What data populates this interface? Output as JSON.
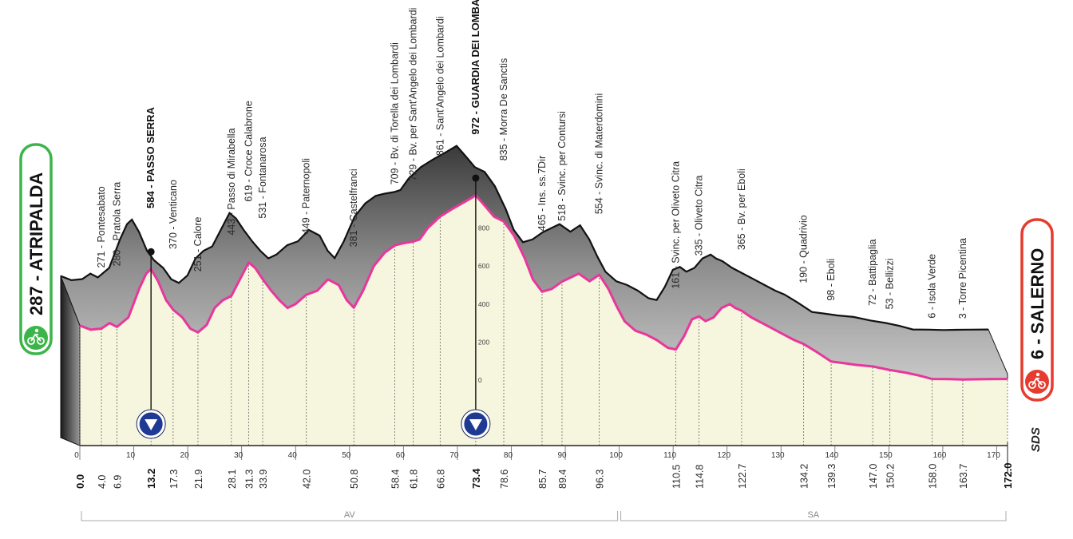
{
  "chart_data": {
    "type": "area",
    "title": "",
    "xlabel": "",
    "ylabel": "",
    "xlim": [
      0,
      172
    ],
    "ylim": [
      0,
      1000
    ],
    "x_ticks": [
      0,
      10,
      20,
      30,
      40,
      50,
      60,
      70,
      80,
      90,
      100,
      110,
      120,
      130,
      140,
      150,
      160,
      170
    ],
    "y_ticks": [
      0,
      200,
      400,
      600,
      800
    ],
    "start": {
      "label": "287 - ATRIPALDA",
      "km": 0.0,
      "alt": 287
    },
    "finish": {
      "label": "6 - SALERNO",
      "km": 172.0,
      "alt": 6
    },
    "waypoints": [
      {
        "km": 0.0,
        "km_label": "0.0",
        "alt": 287,
        "label": "287 - ATRIPALDA",
        "bold": true
      },
      {
        "km": 4.0,
        "km_label": "4.0",
        "alt": 271,
        "label": "271 - Pontesabato",
        "bold": false
      },
      {
        "km": 6.9,
        "km_label": "6.9",
        "alt": 280,
        "label": "280 - Pratola Serra",
        "bold": false
      },
      {
        "km": 13.2,
        "km_label": "13.2",
        "alt": 584,
        "label": "584 - PASSO SERRA",
        "bold": true
      },
      {
        "km": 17.3,
        "km_label": "17.3",
        "alt": 370,
        "label": "370 - Venticano",
        "bold": false
      },
      {
        "km": 21.9,
        "km_label": "21.9",
        "alt": 251,
        "label": "251 - Calore",
        "bold": false
      },
      {
        "km": 28.1,
        "km_label": "28.1",
        "alt": 443,
        "label": "443 - Passo di Mirabella",
        "bold": false
      },
      {
        "km": 31.3,
        "km_label": "31.3",
        "alt": 619,
        "label": "619 - Croce Calabrone",
        "bold": false
      },
      {
        "km": 33.9,
        "km_label": "33.9",
        "alt": 531,
        "label": "531 - Fontanarosa",
        "bold": false
      },
      {
        "km": 42.0,
        "km_label": "42.0",
        "alt": 449,
        "label": "449 - Paternopoli",
        "bold": false
      },
      {
        "km": 50.8,
        "km_label": "50.8",
        "alt": 381,
        "label": "381 - Castelfranci",
        "bold": false
      },
      {
        "km": 58.4,
        "km_label": "58.4",
        "alt": 709,
        "label": "709 - Bv. di Torella dei Lombardi",
        "bold": false
      },
      {
        "km": 61.8,
        "km_label": "61.8",
        "alt": 729,
        "label": "729 - Bv. per Sant'Angelo dei Lombardi",
        "bold": false
      },
      {
        "km": 66.8,
        "km_label": "66.8",
        "alt": 861,
        "label": "861 - Sant'Angelo dei Lombardi",
        "bold": false
      },
      {
        "km": 73.4,
        "km_label": "73.4",
        "alt": 972,
        "label": "972 - GUARDIA DEI LOMBARDI",
        "bold": true
      },
      {
        "km": 78.6,
        "km_label": "78.6",
        "alt": 835,
        "label": "835 - Morra De Sanctis",
        "bold": false
      },
      {
        "km": 85.7,
        "km_label": "85.7",
        "alt": 465,
        "label": "465 - Ins. ss.7Dir",
        "bold": false
      },
      {
        "km": 89.4,
        "km_label": "89.4",
        "alt": 518,
        "label": "518 - Svinc. per Contursi",
        "bold": false
      },
      {
        "km": 96.3,
        "km_label": "96.3",
        "alt": 554,
        "label": "554 - Svinc. di Materdomini",
        "bold": false
      },
      {
        "km": 110.5,
        "km_label": "110.5",
        "alt": 161,
        "label": "161 - Svinc. per Oliveto Citra",
        "bold": false
      },
      {
        "km": 114.8,
        "km_label": "114.8",
        "alt": 335,
        "label": "335 - Oliveto Citra",
        "bold": false
      },
      {
        "km": 122.7,
        "km_label": "122.7",
        "alt": 365,
        "label": "365 - Bv. per Eboli",
        "bold": false
      },
      {
        "km": 134.2,
        "km_label": "134.2",
        "alt": 190,
        "label": "190 - Quadrivio",
        "bold": false
      },
      {
        "km": 139.3,
        "km_label": "139.3",
        "alt": 98,
        "label": "98 - Eboli",
        "bold": false
      },
      {
        "km": 147.0,
        "km_label": "147.0",
        "alt": 72,
        "label": "72 - Battipaglia",
        "bold": false
      },
      {
        "km": 150.2,
        "km_label": "150.2",
        "alt": 53,
        "label": "53 - Bellizzi",
        "bold": false
      },
      {
        "km": 158.0,
        "km_label": "158.0",
        "alt": 6,
        "label": "6 - Isola Verde",
        "bold": false
      },
      {
        "km": 163.7,
        "km_label": "163.7",
        "alt": 3,
        "label": "3 - Torre Picentina",
        "bold": false
      },
      {
        "km": 172.0,
        "km_label": "172.0",
        "alt": 6,
        "label": "6 - SALERNO",
        "bold": true
      }
    ],
    "profile": [
      [
        0,
        287
      ],
      [
        2,
        265
      ],
      [
        4,
        271
      ],
      [
        5.5,
        300
      ],
      [
        6.9,
        280
      ],
      [
        9,
        330
      ],
      [
        11,
        480
      ],
      [
        12.3,
        560
      ],
      [
        13.2,
        584
      ],
      [
        14.5,
        520
      ],
      [
        16,
        420
      ],
      [
        17.3,
        370
      ],
      [
        19,
        330
      ],
      [
        20.5,
        270
      ],
      [
        21.9,
        251
      ],
      [
        23.5,
        290
      ],
      [
        25,
        380
      ],
      [
        26.5,
        420
      ],
      [
        28.1,
        443
      ],
      [
        29.5,
        520
      ],
      [
        31.3,
        619
      ],
      [
        32.5,
        590
      ],
      [
        33.9,
        531
      ],
      [
        35.5,
        470
      ],
      [
        37,
        420
      ],
      [
        38.5,
        380
      ],
      [
        40,
        400
      ],
      [
        42,
        449
      ],
      [
        44,
        470
      ],
      [
        46,
        530
      ],
      [
        48,
        500
      ],
      [
        49.5,
        420
      ],
      [
        50.8,
        381
      ],
      [
        52.5,
        470
      ],
      [
        54.5,
        600
      ],
      [
        56.5,
        670
      ],
      [
        58.4,
        709
      ],
      [
        60,
        720
      ],
      [
        61.8,
        729
      ],
      [
        63,
        740
      ],
      [
        64.5,
        800
      ],
      [
        66.8,
        861
      ],
      [
        69,
        900
      ],
      [
        71.5,
        940
      ],
      [
        73.4,
        972
      ],
      [
        75,
        920
      ],
      [
        76.8,
        860
      ],
      [
        78.6,
        835
      ],
      [
        80.5,
        760
      ],
      [
        82.5,
        640
      ],
      [
        84,
        530
      ],
      [
        85.7,
        465
      ],
      [
        87.5,
        480
      ],
      [
        89.4,
        518
      ],
      [
        91,
        540
      ],
      [
        92.5,
        560
      ],
      [
        94.5,
        520
      ],
      [
        96.3,
        554
      ],
      [
        98,
        480
      ],
      [
        99.5,
        390
      ],
      [
        101,
        310
      ],
      [
        103,
        260
      ],
      [
        105,
        240
      ],
      [
        107,
        210
      ],
      [
        109,
        170
      ],
      [
        110.5,
        161
      ],
      [
        112,
        230
      ],
      [
        113.5,
        320
      ],
      [
        114.8,
        335
      ],
      [
        116,
        310
      ],
      [
        117.5,
        330
      ],
      [
        119,
        380
      ],
      [
        120.5,
        400
      ],
      [
        121.5,
        380
      ],
      [
        122.7,
        365
      ],
      [
        124.5,
        330
      ],
      [
        126.5,
        300
      ],
      [
        128.5,
        270
      ],
      [
        130.5,
        240
      ],
      [
        132.5,
        210
      ],
      [
        134.2,
        190
      ],
      [
        136.5,
        150
      ],
      [
        139.3,
        98
      ],
      [
        141.5,
        90
      ],
      [
        144,
        80
      ],
      [
        147,
        72
      ],
      [
        150.2,
        53
      ],
      [
        153,
        40
      ],
      [
        155.5,
        25
      ],
      [
        158,
        6
      ],
      [
        161,
        5
      ],
      [
        163.7,
        3
      ],
      [
        166,
        4
      ],
      [
        168.5,
        5
      ],
      [
        172,
        6
      ]
    ],
    "sprints": [
      {
        "km": 13.2
      },
      {
        "km": 73.4
      }
    ],
    "provinces": [
      {
        "label": "AV",
        "from": 0,
        "to": 100
      },
      {
        "label": "SA",
        "from": 100,
        "to": 172
      }
    ],
    "grid": false,
    "legend": "none",
    "colors": {
      "plain": "#f6f5de",
      "relief": "#9b9b9b",
      "line": "#e8379c",
      "start_badge": "#3bb54a",
      "finish_badge": "#e63b2e",
      "sprint": "#1f3a93"
    },
    "logo_text": "SDS"
  }
}
